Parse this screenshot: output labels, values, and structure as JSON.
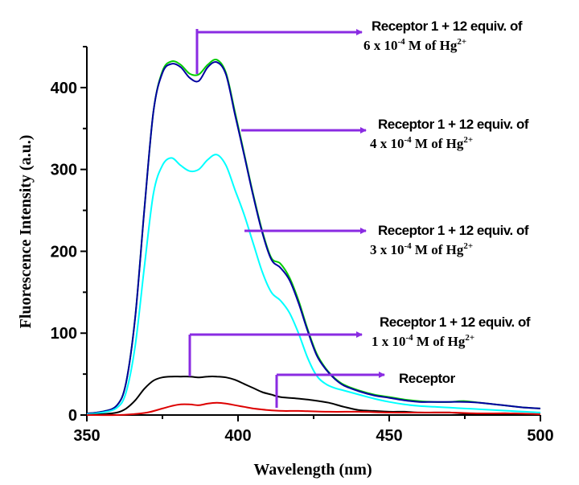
{
  "chart_data": {
    "type": "line",
    "xlabel": "Wavelength (nm)",
    "ylabel": "Fluorescence Intensity (a.u.)",
    "xlim": [
      350,
      500
    ],
    "ylim": [
      0,
      450
    ],
    "xticks": [
      350,
      400,
      450,
      500
    ],
    "yticks": [
      0,
      100,
      200,
      300,
      400
    ],
    "grid": false,
    "series": [
      {
        "color": "#00cc00",
        "x": [
          350,
          355,
          360,
          363,
          366,
          369,
          372,
          375,
          378,
          381,
          384,
          387,
          390,
          393,
          396,
          399,
          402,
          405,
          408,
          411,
          414,
          417,
          420,
          423,
          426,
          429,
          432,
          435,
          440,
          445,
          450,
          455,
          460,
          465,
          470,
          475,
          480,
          485,
          490,
          495,
          500
        ],
        "y": [
          2,
          4,
          12,
          40,
          120,
          250,
          370,
          420,
          432,
          428,
          417,
          416,
          428,
          434,
          418,
          370,
          320,
          270,
          225,
          192,
          185,
          168,
          140,
          105,
          75,
          57,
          45,
          37,
          30,
          25,
          22,
          19,
          17,
          16,
          16,
          17,
          15,
          13,
          11,
          9,
          8
        ]
      },
      {
        "color": "#0000a0",
        "x": [
          350,
          355,
          360,
          363,
          366,
          369,
          372,
          375,
          378,
          381,
          384,
          387,
          390,
          393,
          396,
          399,
          402,
          405,
          408,
          411,
          414,
          417,
          420,
          423,
          426,
          429,
          432,
          435,
          440,
          445,
          450,
          455,
          460,
          465,
          470,
          475,
          480,
          485,
          490,
          495,
          500
        ],
        "y": [
          2,
          4,
          12,
          40,
          120,
          250,
          370,
          418,
          429,
          425,
          412,
          408,
          425,
          431,
          416,
          367,
          318,
          268,
          223,
          190,
          180,
          165,
          137,
          103,
          73,
          56,
          44,
          36,
          29,
          24,
          21,
          18,
          16,
          16,
          16,
          16,
          15,
          13,
          11,
          9,
          8
        ]
      },
      {
        "color": "#00ffff",
        "x": [
          350,
          355,
          360,
          363,
          366,
          369,
          372,
          375,
          378,
          381,
          384,
          387,
          390,
          393,
          396,
          399,
          402,
          405,
          408,
          411,
          414,
          417,
          420,
          423,
          426,
          429,
          432,
          435,
          440,
          445,
          450,
          455,
          460,
          465,
          470,
          475,
          480,
          485,
          490,
          495,
          500
        ],
        "y": [
          1,
          3,
          9,
          28,
          85,
          180,
          270,
          305,
          314,
          305,
          298,
          300,
          312,
          318,
          305,
          275,
          245,
          210,
          175,
          150,
          140,
          125,
          100,
          70,
          48,
          38,
          33,
          30,
          25,
          20,
          16,
          13,
          11,
          10,
          9,
          8,
          7,
          6,
          5,
          4,
          3
        ]
      },
      {
        "color": "#000000",
        "x": [
          350,
          355,
          360,
          363,
          366,
          369,
          372,
          375,
          378,
          381,
          384,
          387,
          390,
          393,
          396,
          399,
          402,
          405,
          408,
          411,
          414,
          420,
          425,
          430,
          435,
          440,
          445,
          450,
          455,
          460,
          465,
          470,
          475,
          480,
          485,
          490,
          495,
          500
        ],
        "y": [
          0,
          1,
          3,
          8,
          18,
          32,
          42,
          46,
          47,
          47,
          47,
          46,
          47,
          47,
          46,
          43,
          38,
          33,
          28,
          25,
          22,
          20,
          18,
          15,
          10,
          6,
          5,
          4,
          4,
          3,
          3,
          3,
          2,
          2,
          2,
          2,
          1,
          1
        ]
      },
      {
        "color": "#dd0000",
        "x": [
          350,
          360,
          365,
          370,
          375,
          378,
          381,
          384,
          387,
          390,
          393,
          396,
          399,
          402,
          405,
          410,
          415,
          420,
          430,
          440,
          450,
          460,
          470,
          480,
          490,
          500
        ],
        "y": [
          0,
          0,
          1,
          3,
          8,
          11,
          13,
          13,
          12,
          14,
          15,
          14,
          12,
          10,
          8,
          6,
          5,
          5,
          4,
          4,
          3,
          3,
          3,
          2,
          2,
          1
        ]
      }
    ],
    "annotations": [
      {
        "line1": "Receptor 1 + 12 equiv. of",
        "line2_prefix": "6 x 10",
        "line2_exp": "-4",
        "line2_mid": " M of Hg",
        "line2_sup": "2+"
      },
      {
        "line1": "Receptor 1 + 12 equiv. of",
        "line2_prefix": "4 x 10",
        "line2_exp": "-4",
        "line2_mid": " M of Hg",
        "line2_sup": "2+"
      },
      {
        "line1": "Receptor 1 + 12 equiv. of",
        "line2_prefix": "3 x 10",
        "line2_exp": "-4",
        "line2_mid": " M of Hg",
        "line2_sup": "2+"
      },
      {
        "line1": "Receptor 1 + 12 equiv. of",
        "line2_prefix": "1 x 10",
        "line2_exp": "-4",
        "line2_mid": " M of Hg",
        "line2_sup": "2+"
      },
      {
        "line1": "Receptor"
      }
    ],
    "annotation_color": "#8a2be2"
  }
}
